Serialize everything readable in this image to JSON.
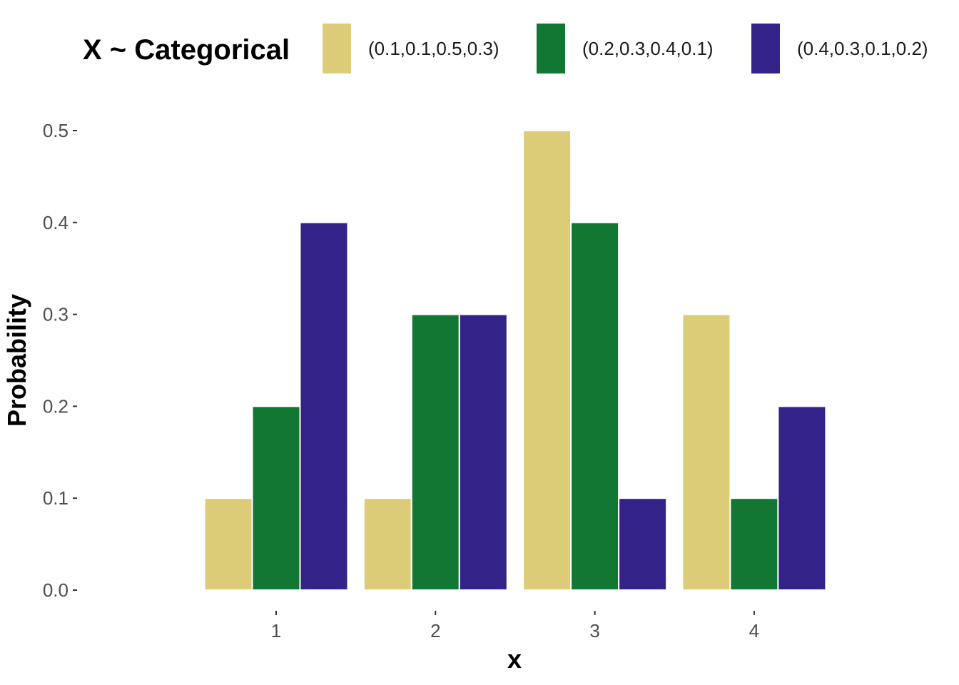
{
  "chart_data": {
    "type": "bar",
    "legend_title": "X ~ Categorical",
    "legend_position": "top",
    "xlabel": "x",
    "ylabel": "Probability",
    "categories": [
      "1",
      "2",
      "3",
      "4"
    ],
    "ylim": [
      0,
      0.5
    ],
    "yticks": [
      "0.0",
      "0.1",
      "0.2",
      "0.3",
      "0.4",
      "0.5"
    ],
    "grid": false,
    "series": [
      {
        "name": "(0.1,0.1,0.5,0.3)",
        "color": "#DDCC77",
        "values": [
          0.1,
          0.1,
          0.5,
          0.3
        ]
      },
      {
        "name": "(0.2,0.3,0.4,0.1)",
        "color": "#117733",
        "values": [
          0.2,
          0.3,
          0.4,
          0.1
        ]
      },
      {
        "name": "(0.4,0.3,0.1,0.2)",
        "color": "#332288",
        "values": [
          0.4,
          0.3,
          0.1,
          0.2
        ]
      }
    ]
  }
}
